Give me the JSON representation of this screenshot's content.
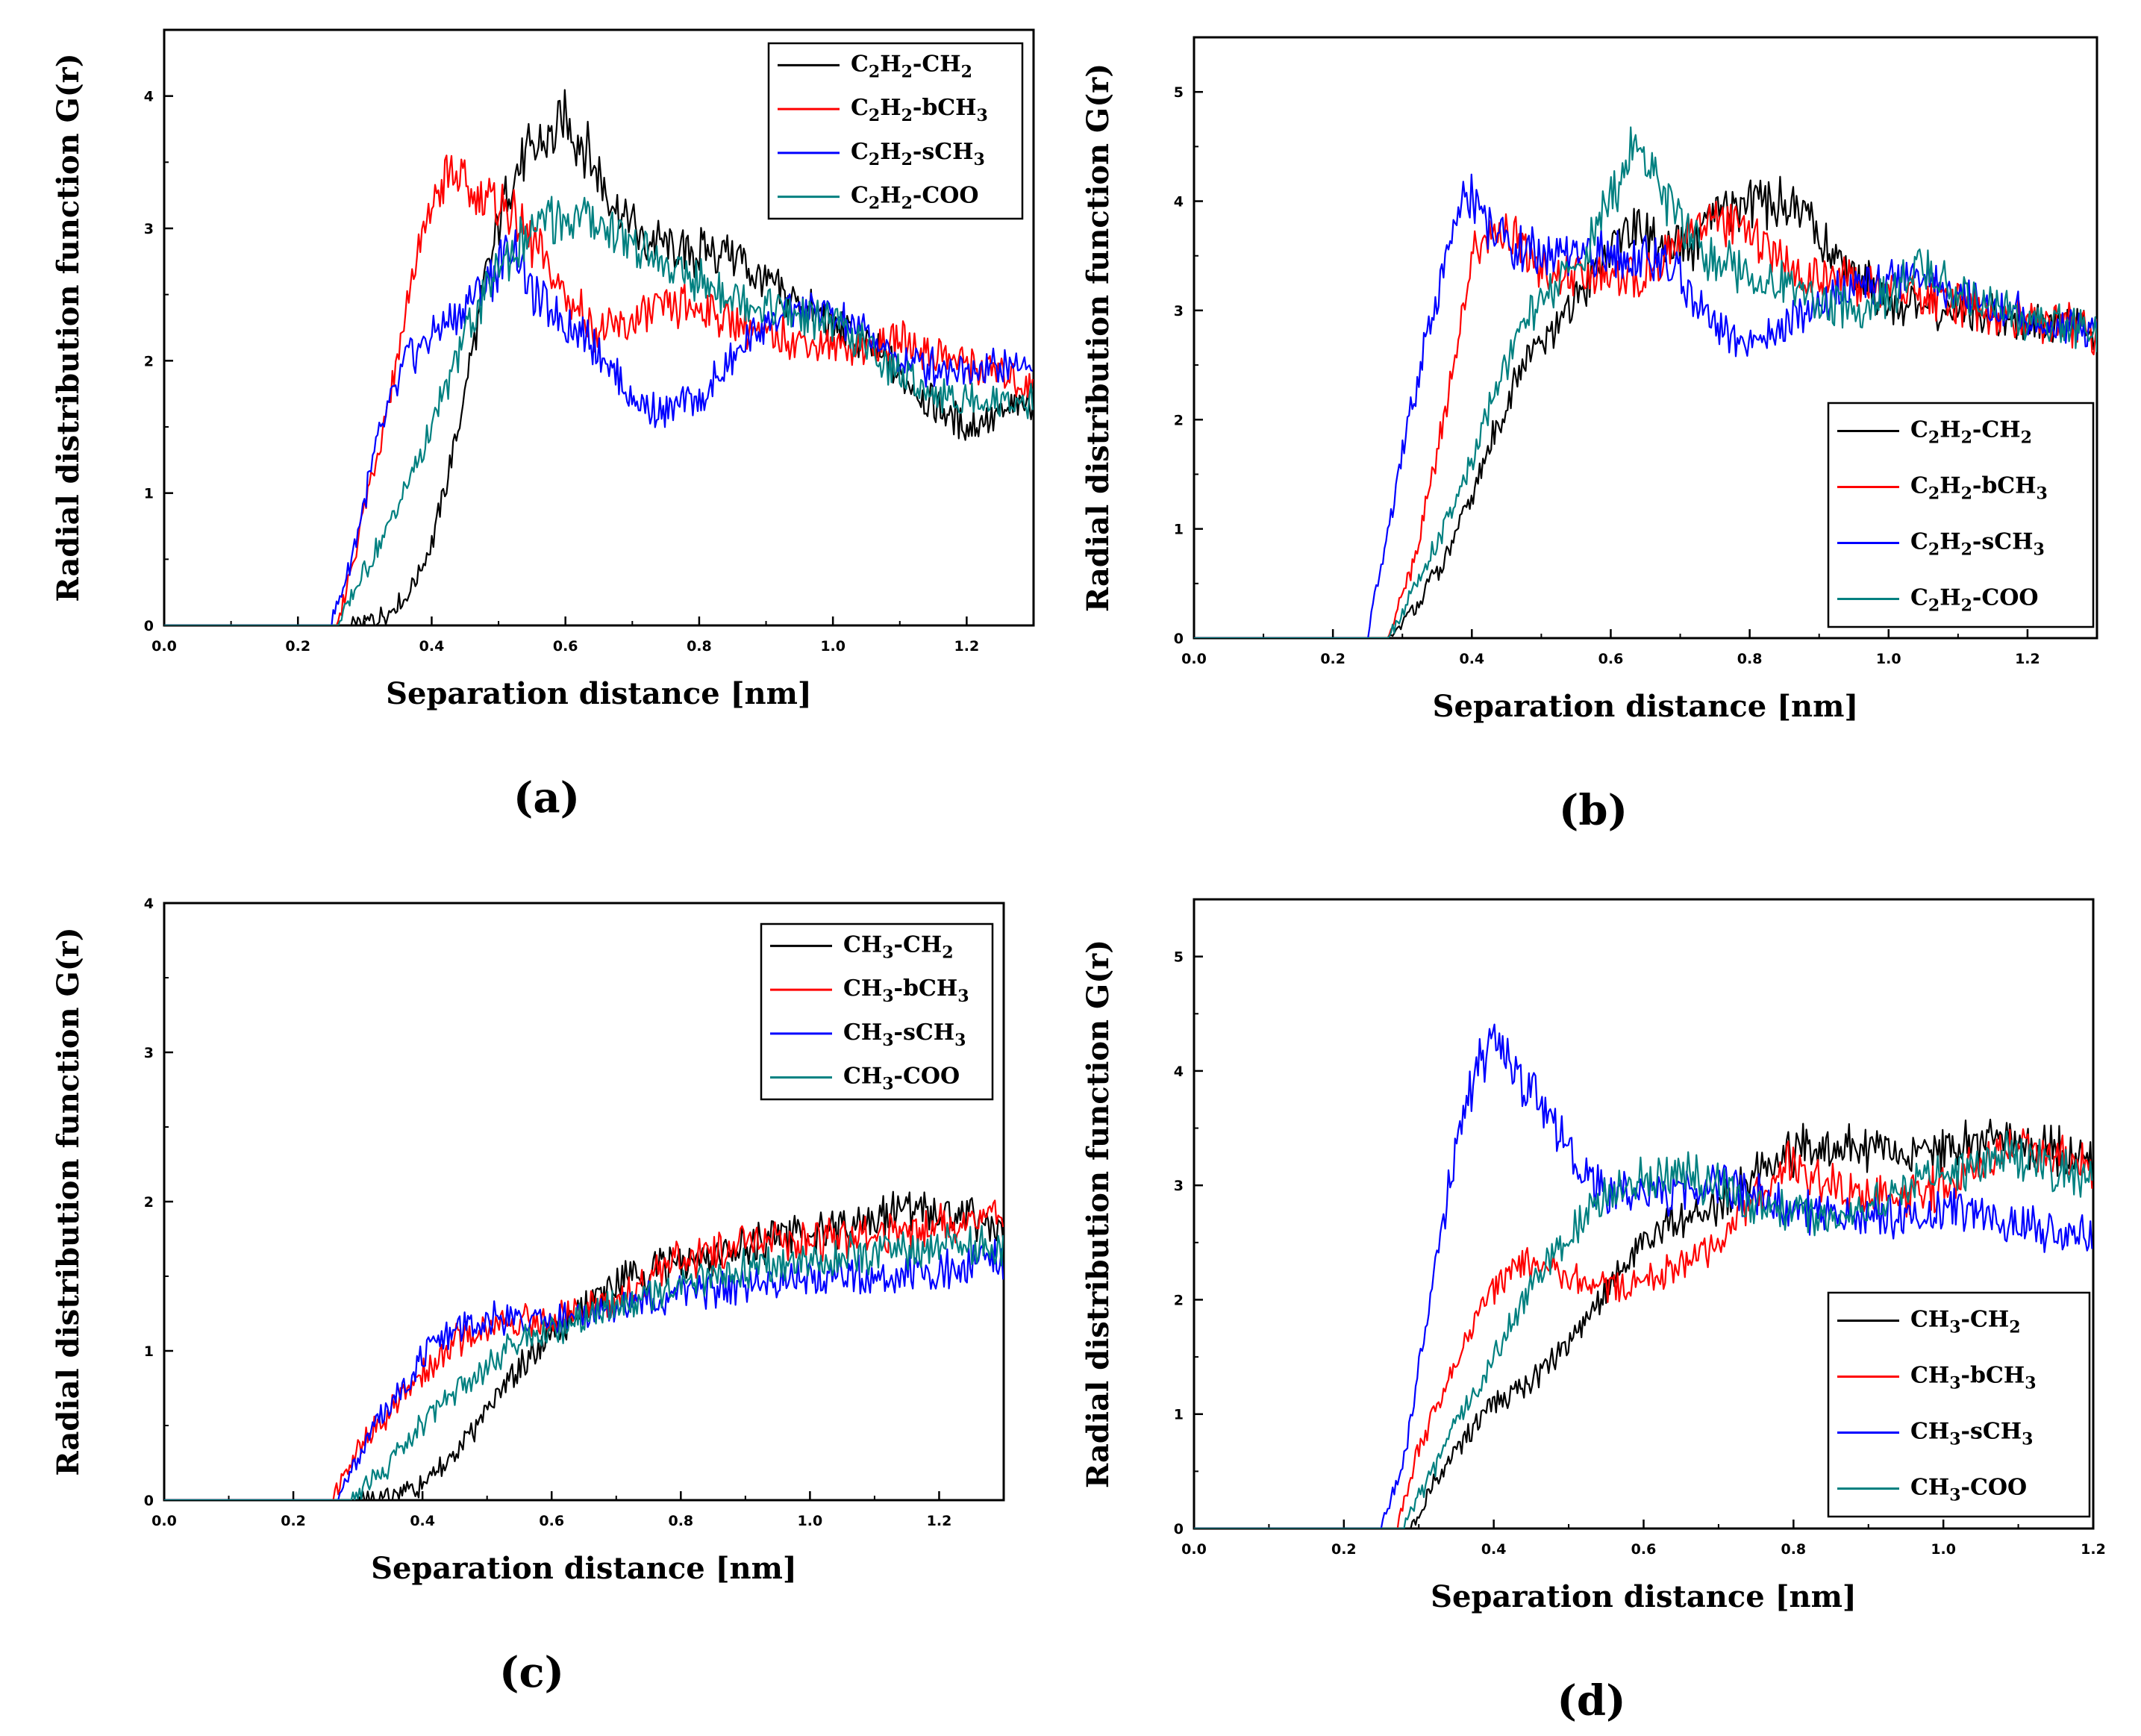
{
  "chart_data": [
    {
      "type": "line",
      "panel_label": "(a)",
      "xlabel": "Separation distance [nm]",
      "ylabel": "Radial distribution function G(r)",
      "xlim": [
        0.0,
        1.3
      ],
      "ylim": [
        0,
        4.5
      ],
      "xticks": [
        "0.0",
        "0.2",
        "0.4",
        "0.6",
        "0.8",
        "1.0",
        "1.2"
      ],
      "yticks": [
        "0",
        "1",
        "2",
        "3",
        "4"
      ],
      "legend_position": "top-right",
      "series": [
        {
          "name": "C2H2-CH2",
          "legend": {
            "a": "C",
            "a_sub": "2",
            "b": "H",
            "b_sub": "2",
            "c": "-CH",
            "c_sub": "2"
          },
          "color": "#000000",
          "x": [
            0.2,
            0.28,
            0.32,
            0.36,
            0.4,
            0.44,
            0.48,
            0.52,
            0.55,
            0.58,
            0.6,
            0.63,
            0.67,
            0.72,
            0.78,
            0.84,
            0.9,
            0.96,
            1.02,
            1.08,
            1.14,
            1.2,
            1.25,
            1.3
          ],
          "y": [
            0,
            0,
            0.05,
            0.2,
            0.6,
            1.5,
            2.6,
            3.4,
            3.6,
            3.7,
            3.8,
            3.6,
            3.2,
            2.9,
            2.8,
            2.85,
            2.6,
            2.4,
            2.2,
            2.0,
            1.7,
            1.5,
            1.6,
            1.7
          ]
        },
        {
          "name": "C2H2-bCH3",
          "legend": {
            "a": "C",
            "a_sub": "2",
            "b": "H",
            "b_sub": "2",
            "c": "-bCH",
            "c_sub": "3"
          },
          "color": "#ff0000",
          "x": [
            0.2,
            0.26,
            0.3,
            0.34,
            0.37,
            0.4,
            0.42,
            0.45,
            0.5,
            0.55,
            0.6,
            0.65,
            0.7,
            0.75,
            0.8,
            0.85,
            0.9,
            0.95,
            1.0,
            1.05,
            1.1,
            1.15,
            1.2,
            1.25,
            1.3
          ],
          "y": [
            0,
            0,
            0.9,
            1.8,
            2.6,
            3.2,
            3.4,
            3.3,
            3.2,
            2.9,
            2.5,
            2.2,
            2.3,
            2.4,
            2.4,
            2.3,
            2.2,
            2.15,
            2.1,
            2.1,
            2.15,
            2.05,
            2.0,
            1.9,
            1.8
          ]
        },
        {
          "name": "C2H2-sCH3",
          "legend": {
            "a": "C",
            "a_sub": "2",
            "b": "H",
            "b_sub": "2",
            "c": "-sCH",
            "c_sub": "3"
          },
          "color": "#0000ff",
          "x": [
            0.2,
            0.25,
            0.28,
            0.32,
            0.36,
            0.4,
            0.45,
            0.5,
            0.52,
            0.55,
            0.6,
            0.65,
            0.7,
            0.75,
            0.8,
            0.85,
            0.9,
            0.95,
            1.0,
            1.05,
            1.1,
            1.15,
            1.2,
            1.25,
            1.3
          ],
          "y": [
            0,
            0,
            0.5,
            1.4,
            2.0,
            2.2,
            2.4,
            2.7,
            2.9,
            2.5,
            2.3,
            2.1,
            1.7,
            1.6,
            1.7,
            2.0,
            2.3,
            2.4,
            2.35,
            2.2,
            2.0,
            1.95,
            1.95,
            1.95,
            2.0
          ]
        },
        {
          "name": "C2H2-COO",
          "legend": {
            "a": "C",
            "a_sub": "2",
            "b": "H",
            "b_sub": "2",
            "c": "-COO",
            "c_sub": ""
          },
          "color": "#008080",
          "x": [
            0.2,
            0.26,
            0.3,
            0.35,
            0.4,
            0.45,
            0.5,
            0.55,
            0.6,
            0.65,
            0.7,
            0.75,
            0.8,
            0.85,
            0.9,
            0.95,
            1.0,
            1.05,
            1.1,
            1.15,
            1.2,
            1.25,
            1.3
          ],
          "y": [
            0,
            0,
            0.4,
            0.9,
            1.5,
            2.2,
            2.7,
            3.0,
            3.1,
            3.05,
            2.9,
            2.7,
            2.6,
            2.5,
            2.4,
            2.35,
            2.3,
            2.1,
            1.9,
            1.75,
            1.7,
            1.7,
            1.7
          ]
        }
      ]
    },
    {
      "type": "line",
      "panel_label": "(b)",
      "xlabel": "Separation distance [nm]",
      "ylabel": "Radial distribution function G(r)",
      "xlim": [
        0.0,
        1.3
      ],
      "ylim": [
        0,
        5.5
      ],
      "xticks": [
        "0.0",
        "0.2",
        "0.4",
        "0.6",
        "0.8",
        "1.0",
        "1.2"
      ],
      "yticks": [
        "0",
        "1",
        "2",
        "3",
        "4",
        "5"
      ],
      "legend_position": "bottom-right",
      "series": [
        {
          "name": "C2H2-CH2",
          "legend": {
            "a": "C",
            "a_sub": "2",
            "b": "H",
            "b_sub": "2",
            "c": "-CH",
            "c_sub": "2"
          },
          "color": "#000000",
          "x": [
            0.2,
            0.28,
            0.32,
            0.36,
            0.4,
            0.44,
            0.48,
            0.52,
            0.56,
            0.6,
            0.64,
            0.68,
            0.72,
            0.76,
            0.8,
            0.84,
            0.88,
            0.92,
            0.96,
            1.0,
            1.04,
            1.1,
            1.16,
            1.22,
            1.3
          ],
          "y": [
            0,
            0,
            0.3,
            0.7,
            1.3,
            2.0,
            2.6,
            2.8,
            3.2,
            3.6,
            3.8,
            3.5,
            3.6,
            3.9,
            4.0,
            4.0,
            3.9,
            3.5,
            3.3,
            3.1,
            3.0,
            3.0,
            2.95,
            2.9,
            2.8
          ]
        },
        {
          "name": "C2H2-bCH3",
          "legend": {
            "a": "C",
            "a_sub": "2",
            "b": "H",
            "b_sub": "2",
            "c": "-bCH",
            "c_sub": "3"
          },
          "color": "#ff0000",
          "x": [
            0.2,
            0.28,
            0.32,
            0.36,
            0.4,
            0.44,
            0.48,
            0.52,
            0.56,
            0.6,
            0.64,
            0.68,
            0.72,
            0.76,
            0.8,
            0.84,
            0.88,
            0.92,
            0.96,
            1.0,
            1.06,
            1.12,
            1.18,
            1.24,
            1.3
          ],
          "y": [
            0,
            0,
            0.8,
            2.0,
            3.5,
            3.8,
            3.5,
            3.3,
            3.3,
            3.3,
            3.3,
            3.5,
            3.8,
            3.8,
            3.7,
            3.5,
            3.3,
            3.3,
            3.2,
            3.2,
            3.1,
            3.0,
            2.95,
            2.9,
            2.8
          ]
        },
        {
          "name": "C2H2-sCH3",
          "legend": {
            "a": "C",
            "a_sub": "2",
            "b": "H",
            "b_sub": "2",
            "c": "-sCH",
            "c_sub": "3"
          },
          "color": "#0000ff",
          "x": [
            0.2,
            0.25,
            0.28,
            0.32,
            0.36,
            0.39,
            0.42,
            0.46,
            0.5,
            0.55,
            0.6,
            0.65,
            0.7,
            0.74,
            0.78,
            0.82,
            0.86,
            0.9,
            0.95,
            1.0,
            1.05,
            1.1,
            1.16,
            1.22,
            1.3
          ],
          "y": [
            0,
            0,
            1.0,
            2.3,
            3.4,
            4.1,
            3.8,
            3.6,
            3.5,
            3.5,
            3.5,
            3.5,
            3.3,
            2.9,
            2.7,
            2.7,
            2.9,
            3.1,
            3.2,
            3.3,
            3.3,
            3.1,
            3.0,
            2.9,
            2.8
          ]
        },
        {
          "name": "C2H2-COO",
          "legend": {
            "a": "C",
            "a_sub": "2",
            "b": "H",
            "b_sub": "2",
            "c": "-COO",
            "c_sub": ""
          },
          "color": "#008080",
          "x": [
            0.2,
            0.28,
            0.32,
            0.36,
            0.4,
            0.44,
            0.48,
            0.52,
            0.56,
            0.6,
            0.63,
            0.66,
            0.7,
            0.74,
            0.78,
            0.82,
            0.86,
            0.9,
            0.95,
            1.0,
            1.04,
            1.1,
            1.16,
            1.22,
            1.3
          ],
          "y": [
            0,
            0,
            0.5,
            1.0,
            1.6,
            2.4,
            2.9,
            3.2,
            3.5,
            4.0,
            4.5,
            4.3,
            3.8,
            3.5,
            3.4,
            3.3,
            3.2,
            3.1,
            3.0,
            3.1,
            3.4,
            3.2,
            3.0,
            2.9,
            2.8
          ]
        }
      ]
    },
    {
      "type": "line",
      "panel_label": "(c)",
      "xlabel": "Separation distance [nm]",
      "ylabel": "Radial distribution function G(r)",
      "xlim": [
        0.0,
        1.3
      ],
      "ylim": [
        0,
        4
      ],
      "xticks": [
        "0.0",
        "0.2",
        "0.4",
        "0.6",
        "0.8",
        "1.0",
        "1.2"
      ],
      "yticks": [
        "0",
        "1",
        "2",
        "3",
        "4"
      ],
      "legend_position": "top-right",
      "series": [
        {
          "name": "CH3-CH2",
          "legend": {
            "a": "CH",
            "a_sub": "3",
            "b": "-CH",
            "b_sub": "2",
            "c": "",
            "c_sub": ""
          },
          "color": "#000000",
          "x": [
            0.2,
            0.3,
            0.35,
            0.4,
            0.45,
            0.5,
            0.55,
            0.6,
            0.65,
            0.7,
            0.75,
            0.8,
            0.85,
            0.9,
            0.95,
            1.0,
            1.05,
            1.1,
            1.15,
            1.2,
            1.25,
            1.3
          ],
          "y": [
            0,
            0,
            0.03,
            0.1,
            0.3,
            0.6,
            0.9,
            1.1,
            1.3,
            1.45,
            1.55,
            1.6,
            1.65,
            1.7,
            1.75,
            1.8,
            1.85,
            1.9,
            1.95,
            1.95,
            1.9,
            1.8
          ]
        },
        {
          "name": "CH3-bCH3",
          "legend": {
            "a": "CH",
            "a_sub": "3",
            "b": "-bCH",
            "b_sub": "3",
            "c": "",
            "c_sub": ""
          },
          "color": "#ff0000",
          "x": [
            0.2,
            0.26,
            0.3,
            0.35,
            0.4,
            0.45,
            0.5,
            0.55,
            0.6,
            0.7,
            0.8,
            0.9,
            1.0,
            1.1,
            1.2,
            1.25,
            1.3
          ],
          "y": [
            0,
            0,
            0.35,
            0.6,
            0.85,
            1.05,
            1.15,
            1.2,
            1.2,
            1.35,
            1.6,
            1.7,
            1.75,
            1.8,
            1.85,
            1.9,
            1.9
          ]
        },
        {
          "name": "CH3-sCH3",
          "legend": {
            "a": "CH",
            "a_sub": "3",
            "b": "-sCH",
            "b_sub": "3",
            "c": "",
            "c_sub": ""
          },
          "color": "#0000ff",
          "x": [
            0.2,
            0.27,
            0.3,
            0.35,
            0.4,
            0.45,
            0.5,
            0.55,
            0.6,
            0.7,
            0.8,
            0.9,
            1.0,
            1.1,
            1.2,
            1.3
          ],
          "y": [
            0,
            0,
            0.3,
            0.65,
            0.95,
            1.15,
            1.2,
            1.2,
            1.2,
            1.3,
            1.4,
            1.45,
            1.5,
            1.5,
            1.55,
            1.6
          ]
        },
        {
          "name": "CH3-COO",
          "legend": {
            "a": "CH",
            "a_sub": "3",
            "b": "-COO",
            "b_sub": "",
            "c": "",
            "c_sub": ""
          },
          "color": "#008080",
          "x": [
            0.2,
            0.29,
            0.33,
            0.38,
            0.43,
            0.48,
            0.55,
            0.6,
            0.7,
            0.8,
            0.9,
            1.0,
            1.1,
            1.2,
            1.3
          ],
          "y": [
            0,
            0,
            0.15,
            0.4,
            0.65,
            0.85,
            1.05,
            1.15,
            1.3,
            1.45,
            1.55,
            1.6,
            1.65,
            1.7,
            1.7
          ]
        }
      ]
    },
    {
      "type": "line",
      "panel_label": "(d)",
      "xlabel": "Separation distance [nm]",
      "ylabel": "Radial distribution function G(r)",
      "xlim": [
        0.0,
        1.2
      ],
      "ylim": [
        0,
        5.5
      ],
      "xticks": [
        "0.0",
        "0.2",
        "0.4",
        "0.6",
        "0.8",
        "1.0",
        "1.2"
      ],
      "yticks": [
        "0",
        "1",
        "2",
        "3",
        "4",
        "5"
      ],
      "legend_position": "bottom-right",
      "series": [
        {
          "name": "CH3-CH2",
          "legend": {
            "a": "CH",
            "a_sub": "3",
            "b": "-CH",
            "b_sub": "2",
            "c": "",
            "c_sub": ""
          },
          "color": "#000000",
          "x": [
            0.2,
            0.29,
            0.32,
            0.36,
            0.4,
            0.45,
            0.5,
            0.55,
            0.6,
            0.65,
            0.7,
            0.75,
            0.8,
            0.84,
            0.9,
            0.95,
            1.0,
            1.05,
            1.08,
            1.12,
            1.16,
            1.2
          ],
          "y": [
            0,
            0,
            0.4,
            0.8,
            1.1,
            1.3,
            1.6,
            2.1,
            2.5,
            2.7,
            2.8,
            3.1,
            3.3,
            3.35,
            3.3,
            3.3,
            3.3,
            3.35,
            3.4,
            3.35,
            3.3,
            3.2
          ]
        },
        {
          "name": "CH3-bCH3",
          "legend": {
            "a": "CH",
            "a_sub": "3",
            "b": "-bCH",
            "b_sub": "3",
            "c": "",
            "c_sub": ""
          },
          "color": "#ff0000",
          "x": [
            0.2,
            0.27,
            0.3,
            0.34,
            0.38,
            0.42,
            0.46,
            0.5,
            0.55,
            0.6,
            0.65,
            0.7,
            0.75,
            0.8,
            0.85,
            0.9,
            0.95,
            1.0,
            1.05,
            1.08,
            1.12,
            1.16,
            1.2
          ],
          "y": [
            0,
            0,
            0.7,
            1.3,
            1.9,
            2.3,
            2.3,
            2.2,
            2.1,
            2.2,
            2.3,
            2.5,
            2.9,
            3.2,
            3.0,
            2.9,
            2.9,
            3.0,
            3.2,
            3.35,
            3.3,
            3.2,
            3.1
          ]
        },
        {
          "name": "CH3-sCH3",
          "legend": {
            "a": "CH",
            "a_sub": "3",
            "b": "-sCH",
            "b_sub": "3",
            "c": "",
            "c_sub": ""
          },
          "color": "#0000ff",
          "x": [
            0.2,
            0.25,
            0.28,
            0.31,
            0.34,
            0.37,
            0.4,
            0.43,
            0.46,
            0.5,
            0.55,
            0.6,
            0.65,
            0.7,
            0.75,
            0.8,
            0.85,
            0.9,
            0.95,
            1.0,
            1.05,
            1.1,
            1.15,
            1.2
          ],
          "y": [
            0,
            0,
            0.6,
            1.8,
            3.0,
            3.9,
            4.3,
            4.0,
            3.7,
            3.3,
            2.9,
            2.9,
            2.95,
            3.0,
            2.9,
            2.8,
            2.75,
            2.7,
            2.75,
            2.8,
            2.75,
            2.65,
            2.6,
            2.55
          ]
        },
        {
          "name": "CH3-COO",
          "legend": {
            "a": "CH",
            "a_sub": "3",
            "b": "-COO",
            "b_sub": "",
            "c": "",
            "c_sub": ""
          },
          "color": "#008080",
          "x": [
            0.2,
            0.28,
            0.31,
            0.35,
            0.4,
            0.45,
            0.5,
            0.55,
            0.6,
            0.65,
            0.7,
            0.75,
            0.8,
            0.85,
            0.9,
            0.95,
            1.0,
            1.05,
            1.08,
            1.12,
            1.16,
            1.2
          ],
          "y": [
            0,
            0,
            0.4,
            0.9,
            1.5,
            2.1,
            2.6,
            2.9,
            3.05,
            3.1,
            3.0,
            2.85,
            2.75,
            2.7,
            2.8,
            3.0,
            3.1,
            3.2,
            3.25,
            3.2,
            3.1,
            3.0
          ]
        }
      ]
    }
  ]
}
